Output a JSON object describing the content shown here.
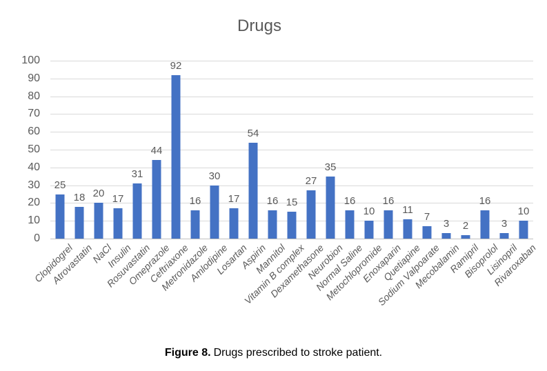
{
  "chart_data": {
    "type": "bar",
    "title": "Drugs",
    "categories": [
      "Clopidogrel",
      "Atrovastatin",
      "NaCl",
      "Insulin",
      "Rosuvastatin",
      "Omeprazole",
      "Ceftriaxone",
      "Metronidazole",
      "Amlodipine",
      "Losartan",
      "Aspirin",
      "Mannitol",
      "Vitamin B complex",
      "Dexamethasone",
      "Neurobion",
      "Normal Saline",
      "Metochlopromide",
      "Enoxaparin",
      "Quetiapine",
      "Sodium Valpoarate",
      "Mecobalamin",
      "Ramipril",
      "Bisoprolol",
      "Lisinopril",
      "Rivaroxaban"
    ],
    "values": [
      25,
      18,
      20,
      17,
      31,
      44,
      92,
      16,
      30,
      17,
      54,
      16,
      15,
      27,
      35,
      16,
      10,
      16,
      11,
      7,
      3,
      2,
      16,
      3,
      10
    ],
    "xlabel": "",
    "ylabel": "",
    "ylim": [
      0,
      100
    ],
    "ytick_step": 10,
    "grid": true,
    "data_labels": true,
    "legend": "none",
    "bar_color": "#4472C4",
    "grid_color": "#D9D9D9",
    "axis_text_color": "#595959"
  },
  "caption": {
    "label": "Figure 8.",
    "text": "Drugs prescribed to stroke patient."
  }
}
